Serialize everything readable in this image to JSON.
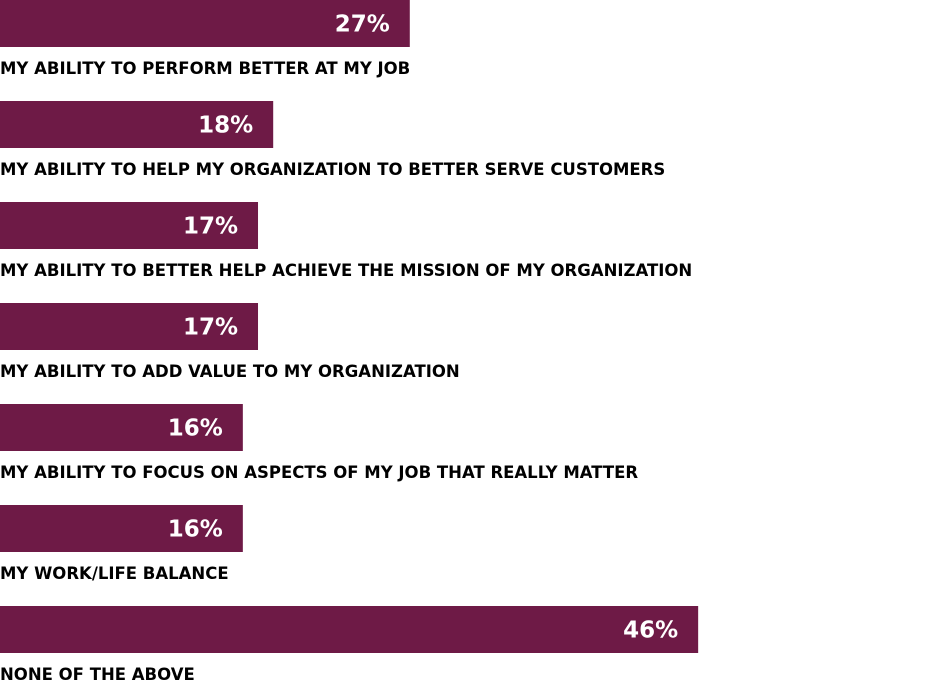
{
  "chart_data": {
    "type": "bar",
    "orientation": "horizontal",
    "categories": [
      "MY ABILITY TO PERFORM BETTER AT MY JOB",
      "MY ABILITY TO HELP MY ORGANIZATION TO BETTER SERVE CUSTOMERS",
      "MY ABILITY TO BETTER HELP ACHIEVE THE MISSION OF MY ORGANIZATION",
      "MY ABILITY TO ADD VALUE TO MY ORGANIZATION",
      "MY ABILITY TO FOCUS ON ASPECTS OF MY JOB THAT REALLY MATTER",
      "MY WORK/LIFE BALANCE",
      "NONE OF THE ABOVE"
    ],
    "values": [
      27,
      18,
      17,
      17,
      16,
      16,
      46
    ],
    "value_labels": [
      "27%",
      "18%",
      "17%",
      "17%",
      "16%",
      "16%",
      "46%"
    ],
    "bar_color": "#6e1a46",
    "value_label_color": "#ffffff",
    "category_label_color": "#000000",
    "xlim": [
      0,
      62
    ],
    "grid": false
  }
}
